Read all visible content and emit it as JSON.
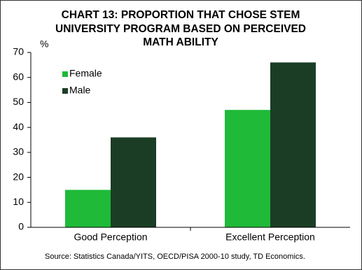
{
  "chart_data": {
    "type": "bar",
    "title": [
      "CHART 13: PROPORTION THAT CHOSE STEM",
      "UNIVERSITY PROGRAM BASED ON PERCEIVED",
      "MATH ABILITY"
    ],
    "y_unit": "%",
    "categories": [
      "Good Perception",
      "Excellent Perception"
    ],
    "series": [
      {
        "name": "Female",
        "color": "#1fba38",
        "values": [
          15,
          47
        ]
      },
      {
        "name": "Male",
        "color": "#1b3d25",
        "values": [
          36,
          66
        ]
      }
    ],
    "ylim": [
      0,
      70
    ],
    "yticks": [
      0,
      10,
      20,
      30,
      40,
      50,
      60,
      70
    ],
    "grid": false,
    "legend": "top-left",
    "source": "Source: Statistics Canada/YITS,  OECD/PISA  2000-10 study, TD Economics."
  }
}
